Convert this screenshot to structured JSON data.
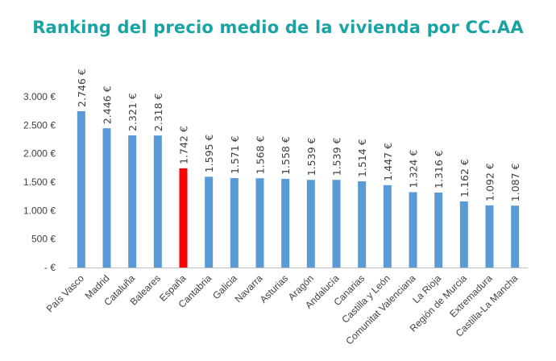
{
  "chart_data": {
    "type": "bar",
    "title": "Ranking del precio medio de la vivienda por CC.AA",
    "xlabel": "",
    "ylabel": "",
    "ylim": [
      0,
      3000
    ],
    "yticks": [
      0,
      500,
      1000,
      1500,
      2000,
      2500,
      3000
    ],
    "ytick_labels": [
      "-  €",
      "500  €",
      "1.000  €",
      "1.500  €",
      "2.000  €",
      "2.500  €",
      "3.000  €"
    ],
    "grid": false,
    "legend": "none",
    "categories": [
      "País Vasco",
      "Madrid",
      "Cataluña",
      "Baleares",
      "España",
      "Cantabria",
      "Galicia",
      "Navarra",
      "Asturias",
      "Aragón",
      "Andalucía",
      "Canarias",
      "Castilla y León",
      "Comunitat Valenciana",
      "La Rioja",
      "Región de Murcia",
      "Extremadura",
      "Castilla-La Mancha"
    ],
    "values": [
      2746,
      2446,
      2321,
      2318,
      1742,
      1595,
      1571,
      1568,
      1558,
      1539,
      1539,
      1514,
      1447,
      1324,
      1316,
      1162,
      1092,
      1087
    ],
    "data_labels": [
      "2.746 €",
      "2.446 €",
      "2.321 €",
      "2.318 €",
      "1.742 €",
      "1.595 €",
      "1.571 €",
      "1.568 €",
      "1.558 €",
      "1.539 €",
      "1.539 €",
      "1.514 €",
      "1.447 €",
      "1.324 €",
      "1.316 €",
      "1.162 €",
      "1.092 €",
      "1.087 €"
    ],
    "colors": {
      "default": "#5b9bd5",
      "highlight": "#ff0000",
      "axis": "#bfbfbf"
    },
    "highlight_category": "España"
  }
}
